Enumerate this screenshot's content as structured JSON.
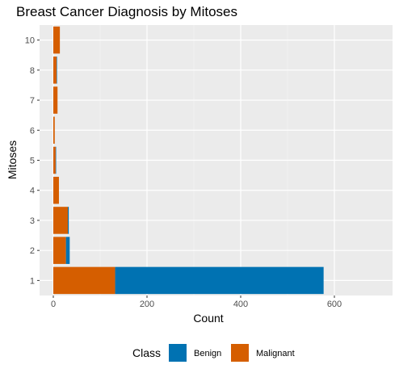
{
  "chart_data": {
    "type": "bar",
    "orientation": "horizontal",
    "stacked": true,
    "title": "Breast Cancer Diagnosis by Mitoses",
    "xlabel": "Count",
    "ylabel": "Mitoses",
    "xlim": [
      0,
      600
    ],
    "x_ticks": [
      0,
      200,
      400,
      600
    ],
    "categories": [
      "1",
      "2",
      "3",
      "4",
      "5",
      "6",
      "7",
      "8",
      "10"
    ],
    "series": [
      {
        "name": "Malignant",
        "color": "#D55E00",
        "values": [
          132,
          27,
          31,
          12,
          5,
          3,
          9,
          7,
          14
        ]
      },
      {
        "name": "Benign",
        "color": "#0072B2",
        "values": [
          445,
          8,
          2,
          0,
          1,
          0,
          0,
          1,
          0
        ]
      }
    ],
    "legend": {
      "title": "Class",
      "position": "bottom",
      "entries": [
        "Benign",
        "Malignant"
      ]
    },
    "grid": true,
    "panel_background": "#EBEBEB"
  }
}
